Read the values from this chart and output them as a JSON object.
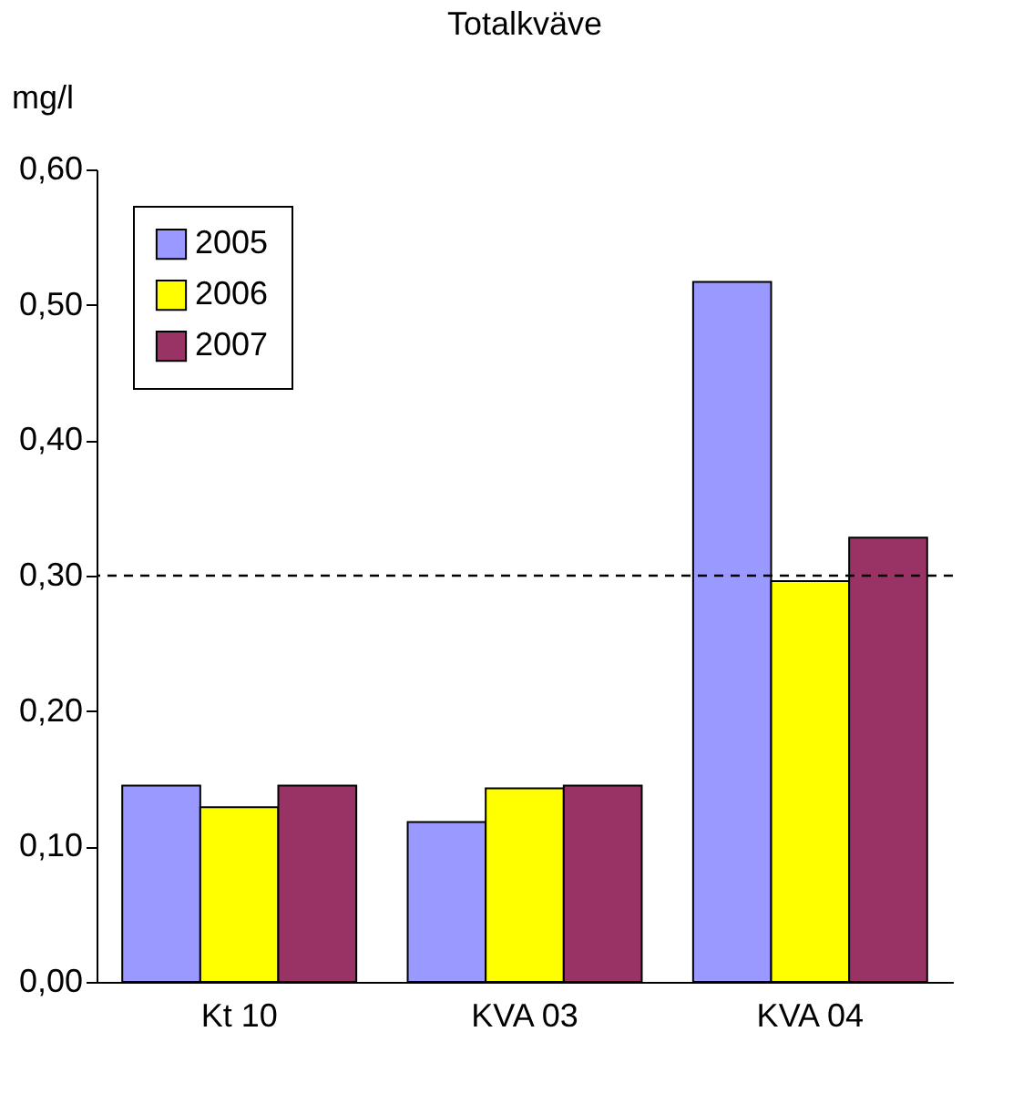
{
  "chart_data": {
    "type": "bar",
    "title": "Totalkväve",
    "ylabel": "mg/l",
    "categories": [
      "Kt 10",
      "KVA 03",
      "KVA 04"
    ],
    "series": [
      {
        "name": "2005",
        "color": "#9999ff",
        "values": [
          0.145,
          0.118,
          0.517
        ]
      },
      {
        "name": "2006",
        "color": "#ffff00",
        "values": [
          0.129,
          0.143,
          0.296
        ]
      },
      {
        "name": "2007",
        "color": "#993366",
        "values": [
          0.145,
          0.145,
          0.328
        ]
      }
    ],
    "ylim": [
      0,
      0.6
    ],
    "yticks": [
      {
        "value": 0,
        "label": "0,00"
      },
      {
        "value": 0.1,
        "label": "0,10"
      },
      {
        "value": 0.2,
        "label": "0,20"
      },
      {
        "value": 0.3,
        "label": "0,30"
      },
      {
        "value": 0.4,
        "label": "0,40"
      },
      {
        "value": 0.5,
        "label": "0,50"
      },
      {
        "value": 0.6,
        "label": "0,60"
      }
    ],
    "ref_lines": [
      {
        "axis": "y",
        "value": 0.3,
        "color": "#000000",
        "line_style": "dashed"
      }
    ],
    "legend": "top left",
    "grid": false
  }
}
